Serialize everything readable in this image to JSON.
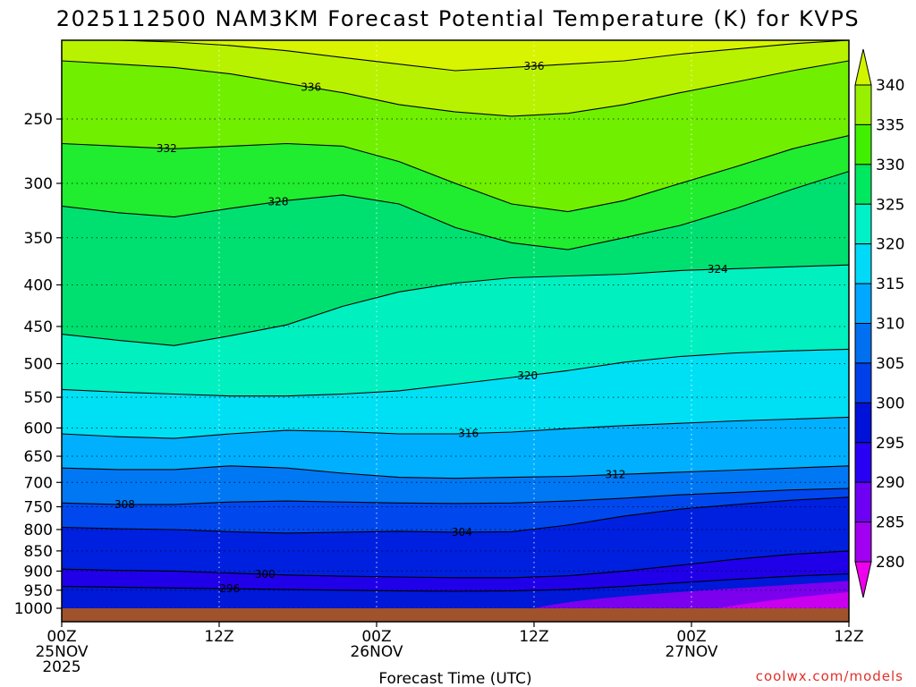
{
  "chart_data": {
    "type": "heatmap",
    "title": "2025112500 NAM3KM Forecast Potential Temperature (K) for KVPS",
    "xlabel": "Forecast Time (UTC)",
    "ylabel": "",
    "x_range_hours": [
      0,
      60
    ],
    "y_range_hpa": [
      1000,
      200
    ],
    "y_scale": "log-pressure",
    "y_ticks": [
      {
        "value": 250,
        "label": "250"
      },
      {
        "value": 300,
        "label": "300"
      },
      {
        "value": 350,
        "label": "350"
      },
      {
        "value": 400,
        "label": "400"
      },
      {
        "value": 450,
        "label": "450"
      },
      {
        "value": 500,
        "label": "500"
      },
      {
        "value": 550,
        "label": "550"
      },
      {
        "value": 600,
        "label": "600"
      },
      {
        "value": 650,
        "label": "650"
      },
      {
        "value": 700,
        "label": "700"
      },
      {
        "value": 750,
        "label": "750"
      },
      {
        "value": 800,
        "label": "800"
      },
      {
        "value": 850,
        "label": "850"
      },
      {
        "value": 900,
        "label": "900"
      },
      {
        "value": 950,
        "label": "950"
      },
      {
        "value": 1000,
        "label": "1000"
      }
    ],
    "x_ticks": [
      {
        "hour": 0,
        "lines": [
          "00Z",
          "25NOV",
          "2025"
        ]
      },
      {
        "hour": 12,
        "lines": [
          "12Z"
        ]
      },
      {
        "hour": 24,
        "lines": [
          "00Z",
          "26NOV"
        ]
      },
      {
        "hour": 36,
        "lines": [
          "12Z"
        ]
      },
      {
        "hour": 48,
        "lines": [
          "00Z",
          "27NOV"
        ]
      },
      {
        "hour": 60,
        "lines": [
          "12Z"
        ]
      }
    ],
    "colorbar": {
      "units": "K",
      "levels": [
        280,
        285,
        290,
        295,
        300,
        305,
        310,
        315,
        320,
        325,
        330,
        335,
        340
      ],
      "colors": [
        "#ee00ee",
        "#a200f0",
        "#6e00f4",
        "#2800f4",
        "#0011d8",
        "#0040e8",
        "#0070f0",
        "#00a8ff",
        "#00daf8",
        "#00f0c8",
        "#00e860",
        "#40f000",
        "#98f000",
        "#d2f400"
      ]
    },
    "series": [
      {
        "name": "296",
        "label": "296",
        "label_at_hour": 12.8,
        "p": [
          940,
          942,
          944,
          946,
          948,
          950,
          952,
          953,
          952,
          948,
          940,
          930,
          921,
          913,
          907
        ]
      },
      {
        "name": "300",
        "label": "300",
        "label_at_hour": 15.5,
        "p": [
          895,
          898,
          900,
          905,
          910,
          913,
          915,
          917,
          917,
          912,
          900,
          885,
          870,
          858,
          850
        ]
      },
      {
        "name": "304",
        "label": "304",
        "label_at_hour": 30.5,
        "p": [
          795,
          798,
          800,
          805,
          808,
          806,
          804,
          806,
          805,
          790,
          770,
          755,
          745,
          736,
          730
        ]
      },
      {
        "name": "308",
        "label": "308",
        "label_at_hour": 4.8,
        "p": [
          742,
          745,
          745,
          740,
          738,
          740,
          742,
          743,
          742,
          738,
          732,
          725,
          720,
          715,
          712
        ]
      },
      {
        "name": "312",
        "label": "312",
        "label_at_hour": 42.2,
        "p": [
          672,
          675,
          675,
          668,
          672,
          682,
          690,
          692,
          690,
          688,
          684,
          680,
          676,
          672,
          668
        ]
      },
      {
        "name": "316",
        "label": "316",
        "label_at_hour": 31.0,
        "p": [
          610,
          615,
          618,
          610,
          604,
          606,
          610,
          610,
          607,
          601,
          596,
          592,
          588,
          585,
          582
        ]
      },
      {
        "name": "320",
        "label": "320",
        "label_at_hour": 35.5,
        "p": [
          538,
          542,
          545,
          548,
          548,
          545,
          540,
          530,
          520,
          510,
          498,
          490,
          485,
          482,
          480
        ]
      },
      {
        "name": "324",
        "label": "324",
        "label_at_hour": 50.0,
        "p": [
          460,
          468,
          475,
          462,
          448,
          425,
          408,
          398,
          392,
          390,
          388,
          384,
          382,
          380,
          378
        ]
      },
      {
        "name": "328",
        "label": "328",
        "label_at_hour": 16.5,
        "p": [
          320,
          326,
          330,
          322,
          315,
          310,
          318,
          340,
          355,
          362,
          350,
          338,
          322,
          305,
          290
        ]
      },
      {
        "name": "332",
        "label": "332",
        "label_at_hour": 8.0,
        "p": [
          268,
          270,
          272,
          270,
          268,
          270,
          282,
          300,
          318,
          325,
          315,
          300,
          286,
          272,
          262
        ]
      },
      {
        "name": "336",
        "label": "336",
        "label_at_hour": 19.0,
        "p": [
          212,
          214,
          216,
          220,
          226,
          232,
          240,
          245,
          248,
          246,
          240,
          232,
          225,
          218,
          212
        ]
      },
      {
        "name": "336 (upper)",
        "label": "336",
        "label_at_hour": 36.0,
        "p": [
          200,
          200,
          201,
          203,
          206,
          210,
          214,
          218,
          216,
          214,
          212,
          208,
          205,
          202,
          200
        ]
      }
    ],
    "annotations": []
  },
  "credit": "coolwx.com/models"
}
